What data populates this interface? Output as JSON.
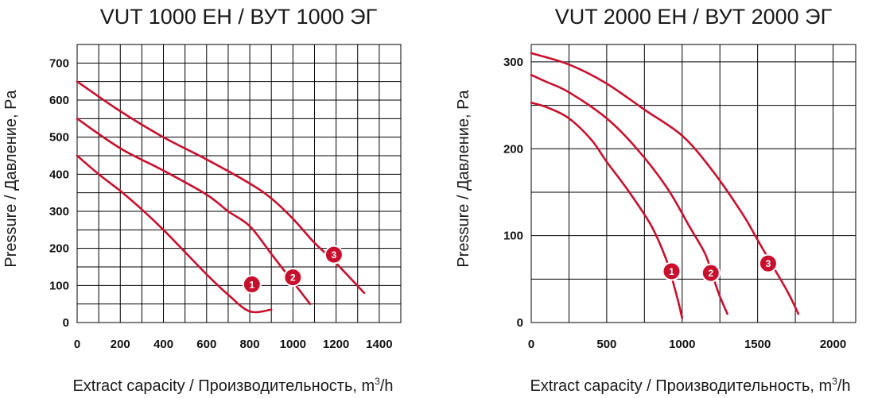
{
  "chart_data": [
    {
      "type": "line",
      "title": "VUT 1000 ЕН / ВУТ 1000 ЭГ",
      "xlabel": "Extract capacity / Производительность, m",
      "xlabel_sup": "3",
      "xlabel_tail": "/h",
      "ylabel": "Pressure / Давление, Pa",
      "xlim": [
        0,
        1500
      ],
      "ylim": [
        0,
        750
      ],
      "xticks": [
        "0",
        "200",
        "400",
        "600",
        "800",
        "1000",
        "1200",
        "1400"
      ],
      "yticks": [
        "0",
        "100",
        "200",
        "300",
        "400",
        "500",
        "600",
        "700"
      ],
      "xtick_values": [
        0,
        200,
        400,
        600,
        800,
        1000,
        1200,
        1400
      ],
      "ytick_values": [
        0,
        100,
        200,
        300,
        400,
        500,
        600,
        700
      ],
      "xgrid_step": 100,
      "ygrid_step": 50,
      "grid": true,
      "series": [
        {
          "name": "1",
          "label": "1",
          "label_at": [
            810,
            103
          ],
          "x": [
            0,
            100,
            200,
            300,
            400,
            500,
            600,
            700,
            800,
            900
          ],
          "y": [
            450,
            400,
            355,
            305,
            250,
            190,
            130,
            75,
            30,
            35
          ]
        },
        {
          "name": "2",
          "label": "2",
          "label_at": [
            1000,
            122
          ],
          "x": [
            0,
            200,
            400,
            600,
            700,
            800,
            900,
            1000,
            1080
          ],
          "y": [
            550,
            470,
            410,
            345,
            300,
            260,
            185,
            110,
            50
          ]
        },
        {
          "name": "3",
          "label": "3",
          "label_at": [
            1190,
            183
          ],
          "x": [
            0,
            200,
            400,
            600,
            800,
            900,
            1000,
            1100,
            1200,
            1330
          ],
          "y": [
            650,
            570,
            500,
            440,
            375,
            335,
            280,
            215,
            160,
            80
          ]
        }
      ]
    },
    {
      "type": "line",
      "title": "VUT 2000 ЕН / ВУТ 2000 ЭГ",
      "xlabel": "Extract capacity / Производительность, m",
      "xlabel_sup": "3",
      "xlabel_tail": "/h",
      "ylabel": "Pressure / Давление, Pa",
      "xlim": [
        0,
        2150
      ],
      "ylim": [
        0,
        320
      ],
      "xticks": [
        "0",
        "500",
        "1000",
        "1500",
        "2000"
      ],
      "yticks": [
        "0",
        "100",
        "200",
        "300"
      ],
      "xtick_values": [
        0,
        500,
        1000,
        1500,
        2000
      ],
      "ytick_values": [
        0,
        100,
        200,
        300
      ],
      "xgrid_step": 250,
      "ygrid_step": 50,
      "grid": true,
      "series": [
        {
          "name": "1",
          "label": "1",
          "label_at": [
            930,
            59
          ],
          "x": [
            0,
            100,
            250,
            400,
            500,
            650,
            800,
            900,
            950,
            980,
            1000
          ],
          "y": [
            253,
            248,
            235,
            210,
            185,
            150,
            110,
            70,
            40,
            20,
            5
          ]
        },
        {
          "name": "2",
          "label": "2",
          "label_at": [
            1190,
            57
          ],
          "x": [
            0,
            100,
            250,
            500,
            700,
            900,
            1050,
            1150,
            1200,
            1250,
            1300
          ],
          "y": [
            285,
            277,
            265,
            235,
            200,
            155,
            110,
            80,
            55,
            30,
            10
          ]
        },
        {
          "name": "3",
          "label": "3",
          "label_at": [
            1570,
            68
          ],
          "x": [
            0,
            250,
            500,
            750,
            1000,
            1200,
            1400,
            1500,
            1600,
            1700,
            1770
          ],
          "y": [
            310,
            297,
            275,
            245,
            215,
            175,
            125,
            95,
            65,
            35,
            10
          ]
        }
      ]
    }
  ]
}
